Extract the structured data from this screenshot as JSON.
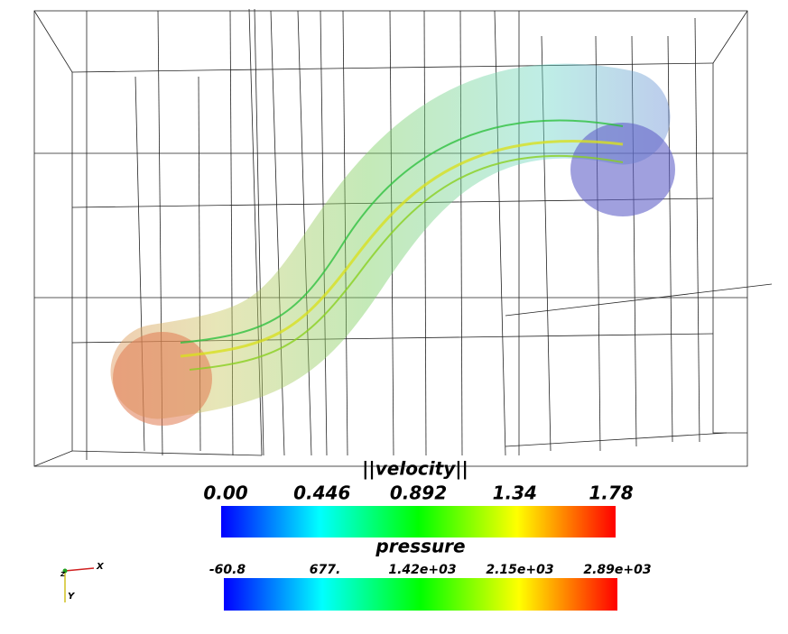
{
  "colorbars": [
    {
      "title": "||velocity||",
      "labels": [
        "0.00",
        "0.446",
        "0.892",
        "1.34",
        "1.78"
      ]
    },
    {
      "title": "pressure",
      "labels": [
        "-60.8",
        "677.",
        "1.42e+03",
        "2.15e+03",
        "2.89e+03"
      ]
    }
  ],
  "axes": {
    "x": "X",
    "y": "Y",
    "z": "Z"
  }
}
